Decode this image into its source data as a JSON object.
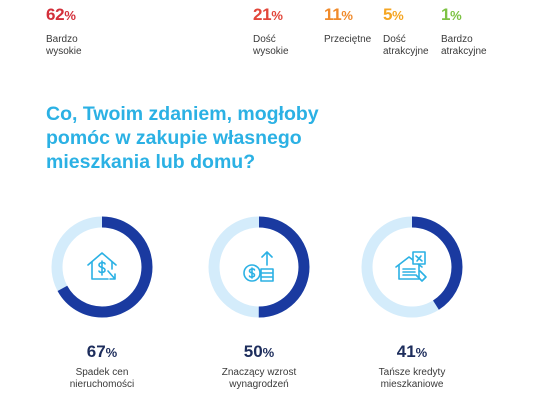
{
  "top_stats": [
    {
      "value": "62",
      "unit": "%",
      "label_lines": [
        "Bardzo",
        "wysokie"
      ],
      "color": "#d32f3a"
    },
    {
      "value": "21",
      "unit": "%",
      "label_lines": [
        "Dość",
        "wysokie"
      ],
      "color": "#e2463a"
    },
    {
      "value": "11",
      "unit": "%",
      "label_lines": [
        "Przeciętne"
      ],
      "color": "#f08a2a"
    },
    {
      "value": "5",
      "unit": "%",
      "label_lines": [
        "Dość",
        "atrakcyjne"
      ],
      "color": "#f5a623"
    },
    {
      "value": "1",
      "unit": "%",
      "label_lines": [
        "Bardzo",
        "atrakcyjne"
      ],
      "color": "#7cc243"
    }
  ],
  "question": {
    "lines": [
      "Co, Twoim zdaniem, mogłoby",
      "pomóc w zakupie własnego",
      "mieszkania lub domu?"
    ],
    "color": "#2bb1e4"
  },
  "rings": [
    {
      "value": "67",
      "unit": "%",
      "fraction": 0.67,
      "label_lines": [
        "Spadek cen",
        "nieruchomości"
      ],
      "icon": "house-price-down-icon"
    },
    {
      "value": "50",
      "unit": "%",
      "fraction": 0.5,
      "label_lines": [
        "Znaczący wzrost",
        "wynagrodzeń"
      ],
      "icon": "salary-growth-icon"
    },
    {
      "value": "41",
      "unit": "%",
      "fraction": 0.41,
      "label_lines": [
        "Tańsze kredyty",
        "mieszkaniowe"
      ],
      "icon": "mortgage-icon"
    }
  ],
  "colors": {
    "ring_fill": "#1a3aa0",
    "ring_track": "#d4ecfb",
    "icon": "#2bb1e4"
  }
}
